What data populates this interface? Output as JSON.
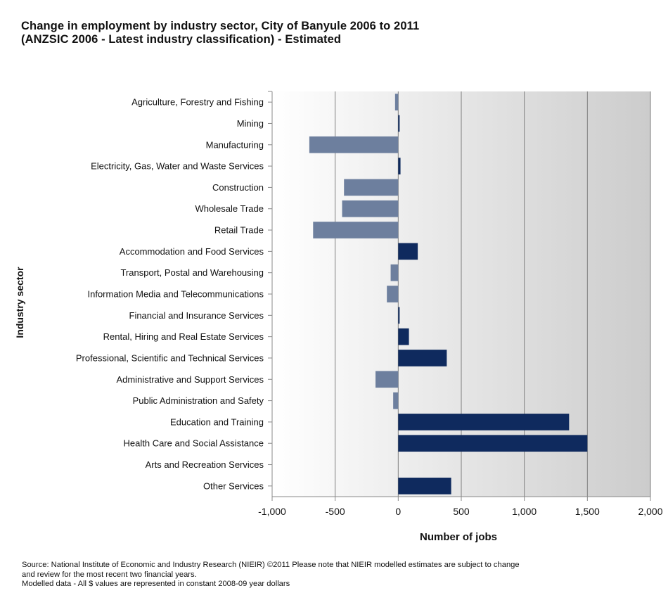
{
  "title_line1": "Change in employment by industry sector, City of Banyule 2006 to 2011",
  "title_line2": "(ANZSIC 2006 - Latest industry classification) - Estimated",
  "source_lines": [
    "Source:  National Institute of Economic and Industry Research (NIEIR) ©2011  Please note that NIEIR modelled estimates are subject to change",
    "and review for the most recent two financial years.",
    "Modelled data - All $ values are represented in constant 2008-09 year dollars"
  ],
  "colors": {
    "positive": "#0f2a5e",
    "negative": "#6d7f9e",
    "axis": "#888888",
    "grid": "#7f7f7f"
  },
  "chart_data": {
    "type": "bar",
    "orientation": "horizontal",
    "xlabel": "Number of jobs",
    "ylabel": "Industry sector",
    "xlim": [
      -1000,
      2000
    ],
    "xticks": [
      -1000,
      -500,
      0,
      500,
      1000,
      1500,
      2000
    ],
    "xtick_labels": [
      "-1,000",
      "-500",
      "0",
      "500",
      "1,000",
      "1,500",
      "2,000"
    ],
    "grid": "vertical",
    "categories": [
      "Agriculture, Forestry and Fishing",
      "Mining",
      "Manufacturing",
      "Electricity, Gas, Water and Waste Services",
      "Construction",
      "Wholesale Trade",
      "Retail Trade",
      "Accommodation and Food Services",
      "Transport, Postal and Warehousing",
      "Information Media and Telecommunications",
      "Financial and Insurance Services",
      "Rental, Hiring and Real Estate Services",
      "Professional, Scientific and Technical Services",
      "Administrative and Support Services",
      "Public Administration and Safety",
      "Education and Training",
      "Health Care and Social Assistance",
      "Arts and Recreation Services",
      "Other Services"
    ],
    "values": [
      -25,
      5,
      -705,
      18,
      -430,
      -445,
      -675,
      155,
      -60,
      -90,
      5,
      85,
      385,
      -180,
      -40,
      1355,
      1500,
      0,
      420
    ]
  }
}
